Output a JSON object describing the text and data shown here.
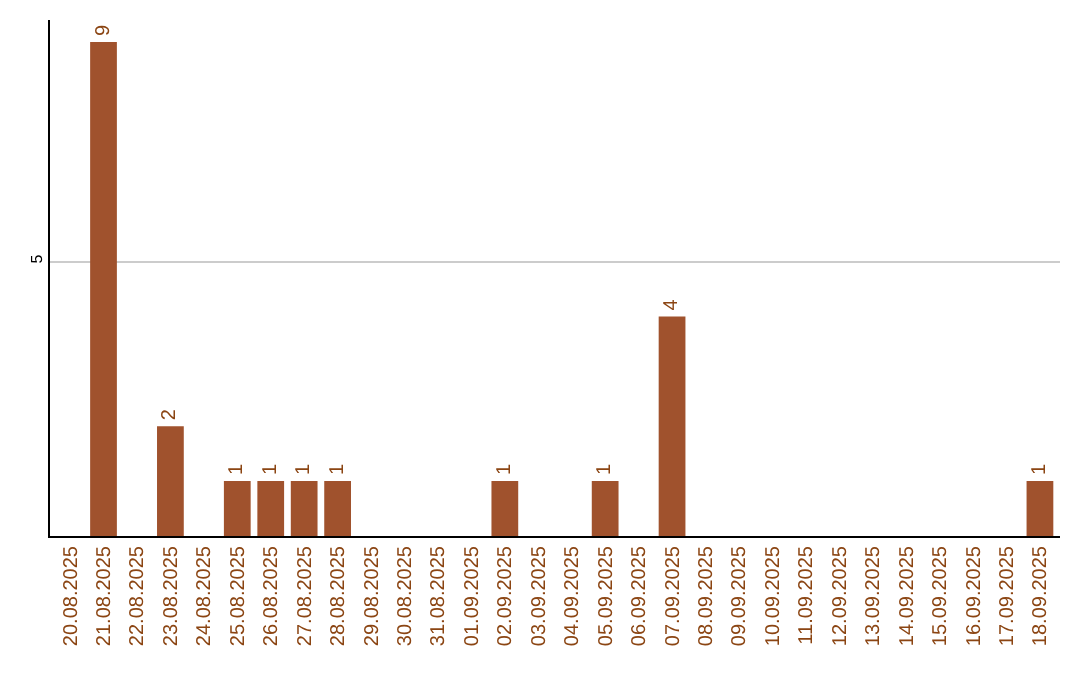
{
  "chart_data": {
    "type": "bar",
    "categories": [
      "20.08.2025",
      "21.08.2025",
      "22.08.2025",
      "23.08.2025",
      "24.08.2025",
      "25.08.2025",
      "26.08.2025",
      "27.08.2025",
      "28.08.2025",
      "29.08.2025",
      "30.08.2025",
      "31.08.2025",
      "01.09.2025",
      "02.09.2025",
      "03.09.2025",
      "04.09.2025",
      "05.09.2025",
      "06.09.2025",
      "07.09.2025",
      "08.09.2025",
      "09.09.2025",
      "10.09.2025",
      "11.09.2025",
      "12.09.2025",
      "13.09.2025",
      "14.09.2025",
      "15.09.2025",
      "16.09.2025",
      "17.09.2025",
      "18.09.2025"
    ],
    "values": [
      0,
      9,
      0,
      2,
      0,
      1,
      1,
      1,
      1,
      0,
      0,
      0,
      0,
      1,
      0,
      0,
      1,
      0,
      4,
      0,
      0,
      0,
      0,
      0,
      0,
      0,
      0,
      0,
      0,
      1
    ],
    "value_labels": [
      null,
      "9",
      null,
      "2",
      null,
      "1",
      "1",
      "1",
      "1",
      null,
      null,
      null,
      null,
      "1",
      null,
      null,
      "1",
      null,
      "4",
      null,
      null,
      null,
      null,
      null,
      null,
      null,
      null,
      null,
      null,
      "1"
    ],
    "color": "#a0522d",
    "ylim": [
      0,
      9.4
    ],
    "yticks": [
      5
    ],
    "grid": "y",
    "legend": false
  }
}
